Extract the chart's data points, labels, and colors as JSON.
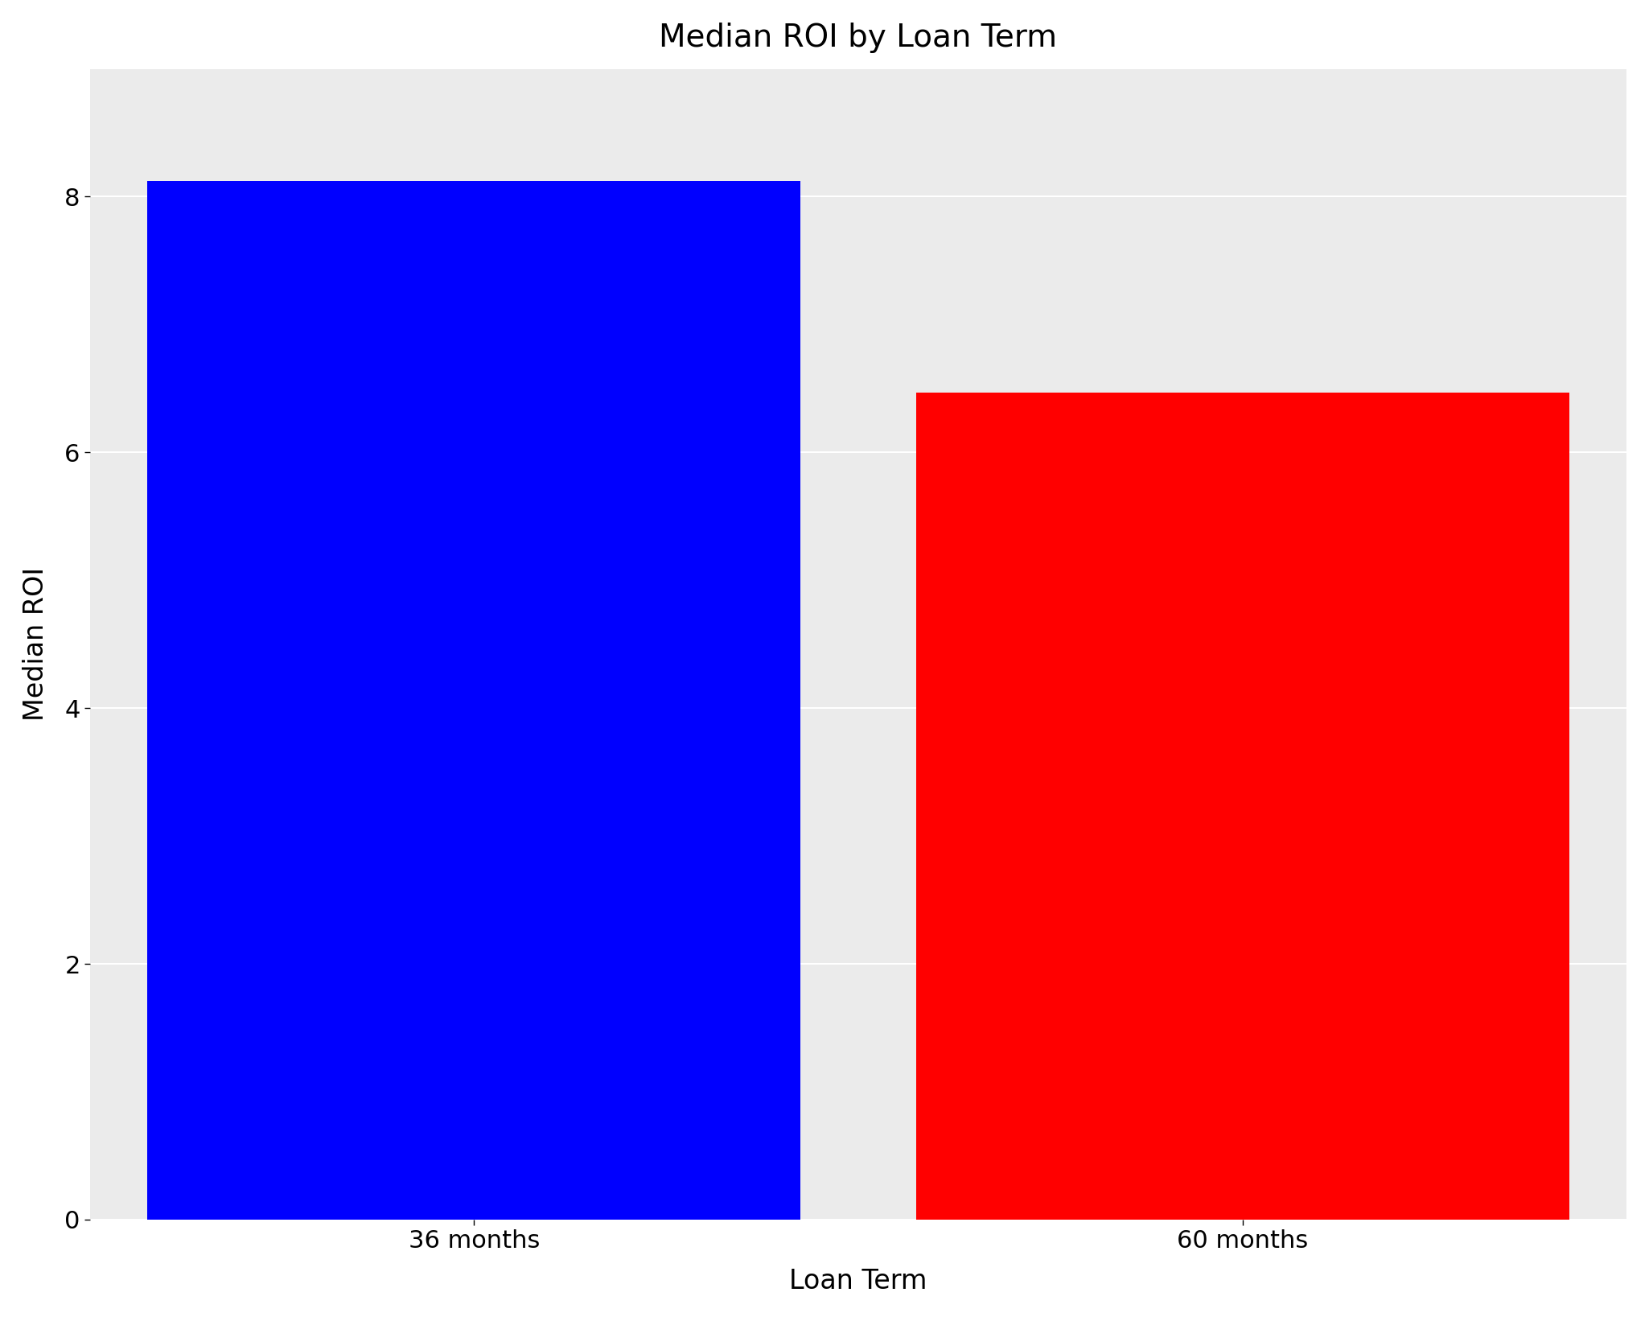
{
  "title": "Median ROI by Loan Term",
  "categories": [
    "36 months",
    "60 months"
  ],
  "values": [
    8.12,
    6.47
  ],
  "bar_colors": [
    "#0000FF",
    "#FF0000"
  ],
  "xlabel": "Loan Term",
  "ylabel": "Median ROI",
  "ylim": [
    0,
    9.0
  ],
  "yticks": [
    0,
    2,
    4,
    6,
    8
  ],
  "figure_bg_color": "#FFFFFF",
  "panel_color": "#EBEBEB",
  "title_fontsize": 28,
  "axis_label_fontsize": 24,
  "tick_fontsize": 22,
  "grid_color": "#FFFFFF",
  "bar_width": 0.85
}
